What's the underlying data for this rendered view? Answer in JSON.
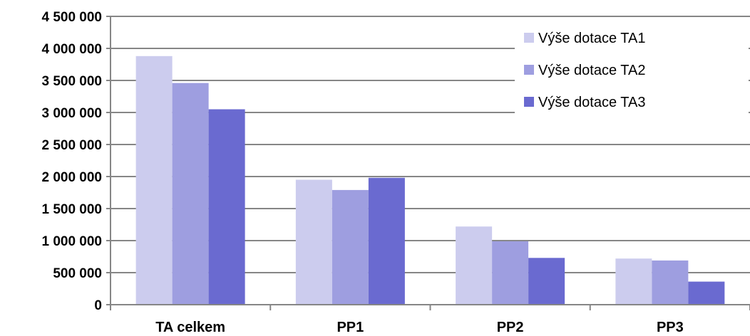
{
  "chart_data": {
    "type": "bar",
    "title": "",
    "xlabel": "",
    "ylabel": "",
    "categories": [
      "TA celkem",
      "PP1",
      "PP2",
      "PP3"
    ],
    "series": [
      {
        "name": "Výše dotace TA1",
        "color": "#ccccee",
        "values": [
          3880000,
          1950000,
          1220000,
          720000
        ]
      },
      {
        "name": "Výše dotace TA2",
        "color": "#9e9ee0",
        "values": [
          3460000,
          1790000,
          990000,
          690000
        ]
      },
      {
        "name": "Výše dotace TA3",
        "color": "#6a6ad0",
        "values": [
          3050000,
          1980000,
          730000,
          360000
        ]
      }
    ],
    "ylim": [
      0,
      4500000
    ],
    "yticks": [
      0,
      500000,
      1000000,
      1500000,
      2000000,
      2500000,
      3000000,
      3500000,
      4000000,
      4500000
    ],
    "ytick_labels": [
      "0",
      "500 000",
      "1 000 000",
      "1 500 000",
      "2 000 000",
      "2 500 000",
      "3 000 000",
      "3 500 000",
      "4 000 000",
      "4 500 000"
    ],
    "grid": true,
    "legend_position": "top-right"
  }
}
